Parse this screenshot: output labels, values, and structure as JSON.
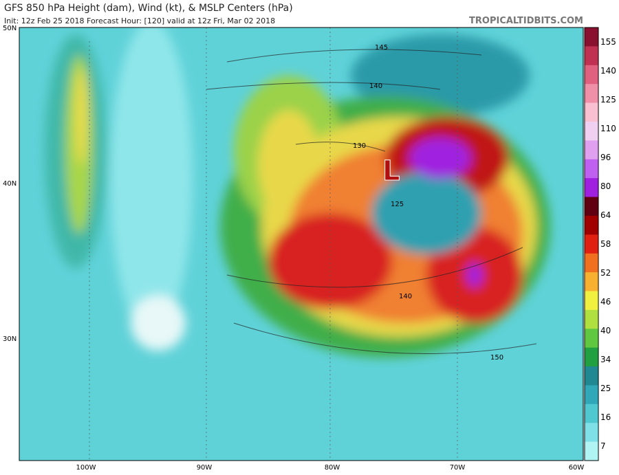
{
  "header": {
    "title": "GFS 850 hPa Height (dam), Wind (kt), & MSLP Centers (hPa)",
    "subtitle": "Init: 12z Feb 25 2018   Forecast Hour: [120]   valid at 12z Fri, Mar 02 2018",
    "watermark": "TROPICALTIDBITS.COM"
  },
  "map": {
    "lat_labels": [
      "50N",
      "40N",
      "30N"
    ],
    "lon_labels": [
      "100W",
      "90W",
      "80W",
      "70W",
      "60W"
    ],
    "contour_labels": [
      "145",
      "140",
      "130",
      "125",
      "140",
      "150"
    ],
    "low_center": "L"
  },
  "colorbar": {
    "labels": [
      "155",
      "140",
      "125",
      "110",
      "96",
      "80",
      "64",
      "58",
      "52",
      "46",
      "40",
      "34",
      "25",
      "16",
      "7"
    ]
  }
}
